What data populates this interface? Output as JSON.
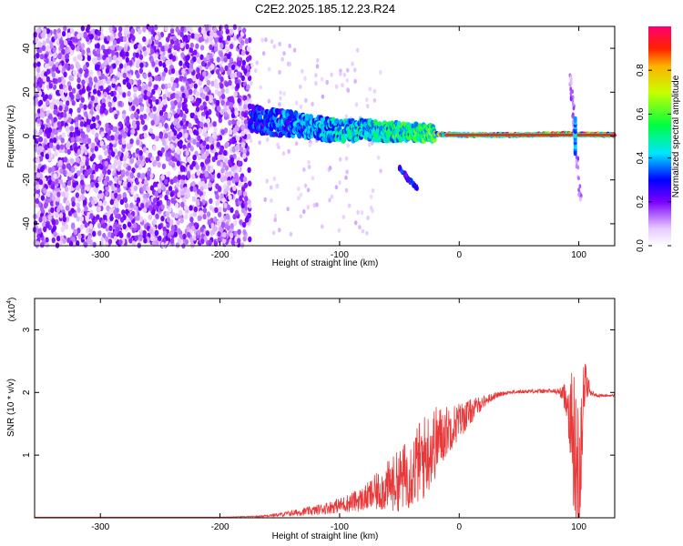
{
  "title": "C2E2.2025.185.12.23.R24",
  "colors": {
    "spectrogram_noise": "#6a1fe6",
    "snr_line": "#e83a3a",
    "background": "#ffffff",
    "axis": "#000000"
  },
  "chart_data": [
    {
      "type": "heatmap",
      "title": "C2E2.2025.185.12.23.R24",
      "xlabel": "Height of straight line (km)",
      "ylabel": "Frequency (Hz)",
      "xlim": [
        -355,
        130
      ],
      "ylim": [
        -50,
        50
      ],
      "xticks": [
        -300,
        -200,
        -100,
        0,
        100
      ],
      "yticks": [
        -40,
        -20,
        0,
        20,
        40
      ],
      "colorbar": {
        "label": "Normalized spectral amplitude",
        "range": [
          0,
          1
        ],
        "ticks": [
          0.0,
          0.2,
          0.4,
          0.6,
          0.8
        ]
      },
      "features": [
        {
          "name": "noise_region",
          "x_range": [
            -355,
            -175
          ],
          "f_range": [
            -50,
            50
          ],
          "amplitude": 0.12
        },
        {
          "name": "signal_band",
          "points": [
            [
              -175,
              8
            ],
            [
              -150,
              6
            ],
            [
              -120,
              4
            ],
            [
              -100,
              2
            ],
            [
              -80,
              3
            ],
            [
              -60,
              2
            ],
            [
              -40,
              2
            ],
            [
              -20,
              1
            ],
            [
              0,
              0.5
            ],
            [
              50,
              0.5
            ],
            [
              90,
              1
            ],
            [
              130,
              0.5
            ]
          ],
          "amplitude_start": 0.35,
          "amplitude_end": 0.95
        },
        {
          "name": "dispersed_tail",
          "points": [
            [
              -50,
              -15
            ],
            [
              -35,
              -24
            ]
          ],
          "amplitude": 0.3
        },
        {
          "name": "spike_near_100",
          "x": 97,
          "f_range": [
            -30,
            28
          ],
          "amplitude": 0.3
        }
      ]
    },
    {
      "type": "line",
      "xlabel": "Height of straight line (km)",
      "ylabel": "SNR (10 * v/v)",
      "yscale_label": "(x10",
      "yscale_exponent": "4",
      "xlim": [
        -355,
        130
      ],
      "ylim": [
        0,
        3.5
      ],
      "xticks": [
        -300,
        -200,
        -100,
        0,
        100
      ],
      "yticks": [
        1,
        2,
        3
      ],
      "series": [
        {
          "x": [
            -355,
            -300,
            -250,
            -200,
            -170,
            -150,
            -120,
            -100,
            -80,
            -60,
            -50,
            -40,
            -30,
            -20,
            -10,
            0,
            10,
            20,
            30,
            40,
            60,
            80,
            85,
            90,
            95,
            98,
            100,
            102,
            105,
            110,
            115,
            120,
            130
          ],
          "y": [
            0.01,
            0.01,
            0.01,
            0.01,
            0.02,
            0.05,
            0.12,
            0.2,
            0.3,
            0.5,
            0.6,
            0.75,
            0.95,
            1.2,
            1.4,
            1.55,
            1.7,
            1.85,
            1.95,
            2.0,
            2.02,
            2.02,
            2.0,
            1.9,
            1.4,
            0.6,
            0.3,
            1.4,
            2.2,
            2.0,
            1.95,
            1.95,
            1.95
          ],
          "noise_amplitude": [
            0,
            0,
            0,
            0,
            0.01,
            0.03,
            0.08,
            0.12,
            0.2,
            0.4,
            0.5,
            0.6,
            0.7,
            0.6,
            0.4,
            0.3,
            0.2,
            0.1,
            0.05,
            0.03,
            0.03,
            0.04,
            0.08,
            0.3,
            1.0,
            1.6,
            1.4,
            1.0,
            0.4,
            0.05,
            0.03,
            0.02,
            0.02
          ]
        }
      ]
    }
  ]
}
